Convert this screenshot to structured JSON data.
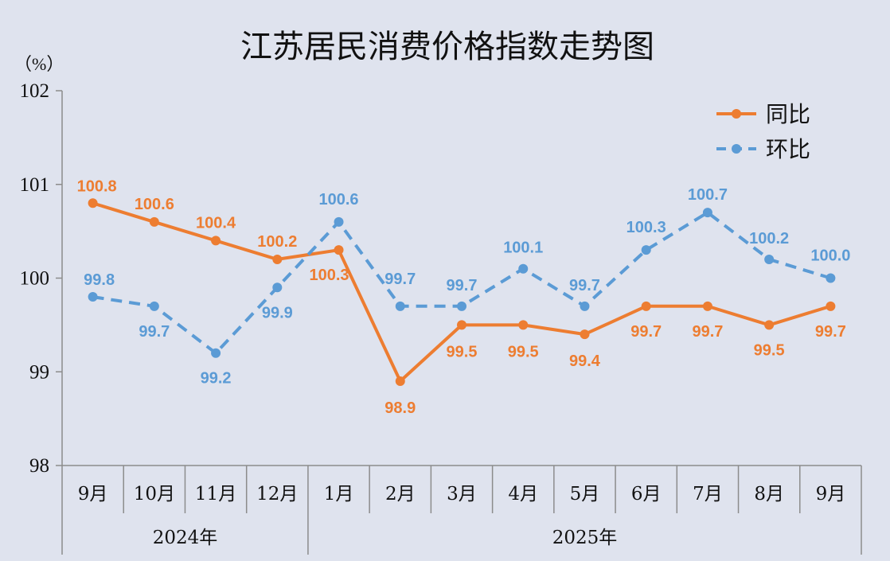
{
  "chart_data": {
    "type": "line",
    "title": "江苏居民消费价格指数走势图",
    "unit_label": "（%）",
    "categories": [
      "9月",
      "10月",
      "11月",
      "12月",
      "1月",
      "2月",
      "3月",
      "4月",
      "5月",
      "6月",
      "7月",
      "8月",
      "9月"
    ],
    "groups": [
      {
        "label": "2024年",
        "start": 0,
        "end": 3
      },
      {
        "label": "2025年",
        "start": 4,
        "end": 12
      }
    ],
    "ylim": [
      98,
      102
    ],
    "yticks": [
      "98",
      "99",
      "100",
      "101",
      "102"
    ],
    "grid": false,
    "legend_position": "top-right",
    "series": [
      {
        "name": "同比",
        "color": "#ed7d31",
        "dashed": false,
        "values": [
          100.8,
          100.6,
          100.4,
          100.2,
          100.3,
          98.9,
          99.5,
          99.5,
          99.4,
          99.7,
          99.7,
          99.5,
          99.7
        ],
        "labels": [
          "100.8",
          "100.6",
          "100.4",
          "100.2",
          "100.3",
          "98.9",
          "99.5",
          "99.5",
          "99.4",
          "99.7",
          "99.7",
          "99.5",
          "99.7"
        ]
      },
      {
        "name": "环比",
        "color": "#5b9bd5",
        "dashed": true,
        "values": [
          99.8,
          99.7,
          99.2,
          99.9,
          100.6,
          99.7,
          99.7,
          100.1,
          99.7,
          100.3,
          100.7,
          100.2,
          100.0
        ],
        "labels": [
          "99.8",
          "99.7",
          "99.2",
          "99.9",
          "100.6",
          "99.7",
          "99.7",
          "100.1",
          "99.7",
          "100.3",
          "100.7",
          "100.2",
          "100.0"
        ]
      }
    ]
  }
}
